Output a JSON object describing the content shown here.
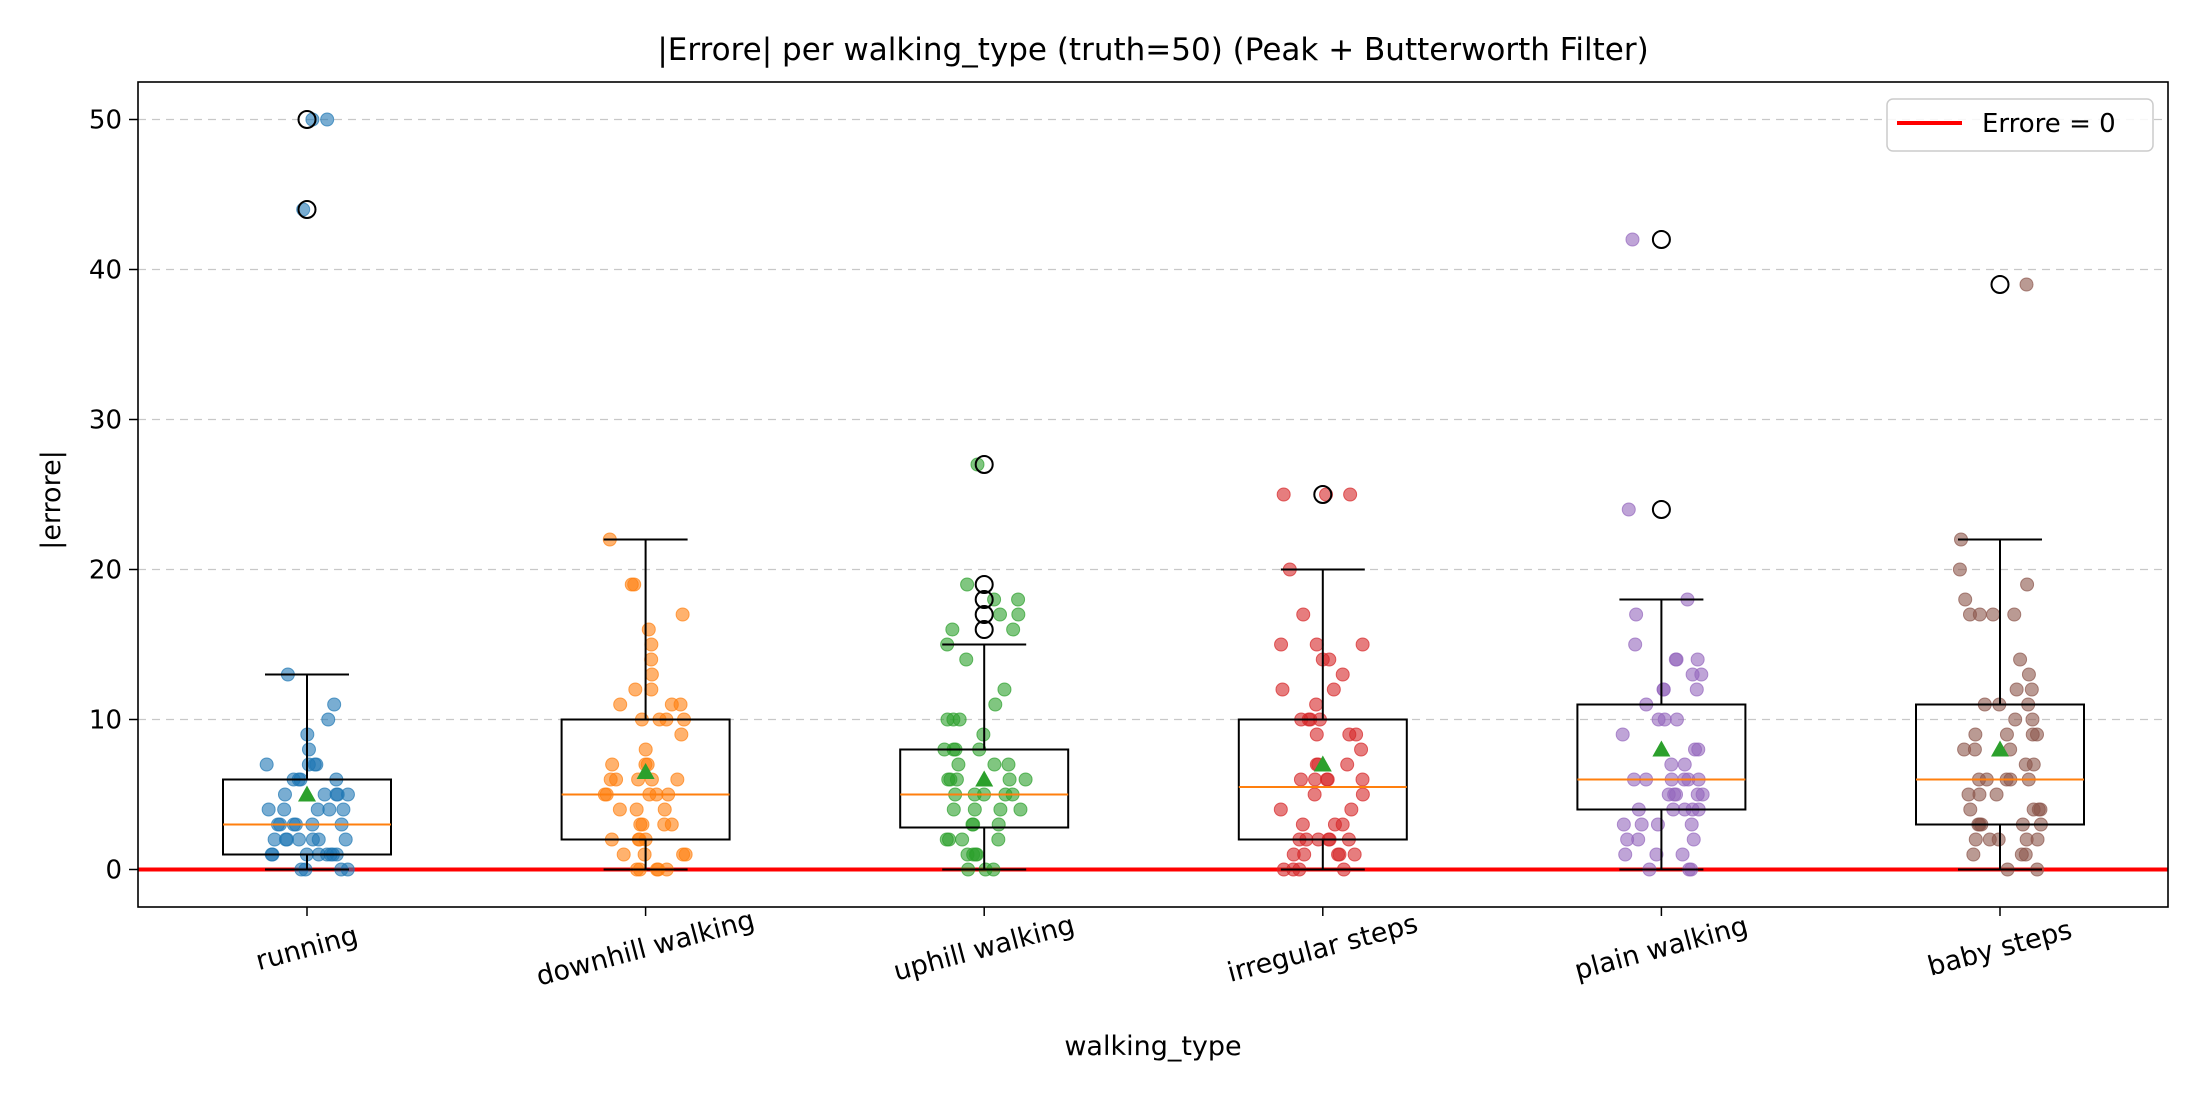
{
  "chart_data": {
    "type": "box",
    "title": "|Errore| per walking_type (truth=50) (Peak + Butterworth Filter)",
    "xlabel": "walking_type",
    "ylabel": "|errore|",
    "ylim": [
      -2.5,
      52.5
    ],
    "yticks": [
      0,
      10,
      20,
      30,
      40,
      50
    ],
    "grid": "y-dashed",
    "categories": [
      "running",
      "downhill walking",
      "uphill walking",
      "irregular steps",
      "plain walking",
      "baby steps"
    ],
    "legend": {
      "position": "top-right",
      "entries": [
        {
          "label": "Errore = 0",
          "color": "#ff0000"
        }
      ]
    },
    "reference_line": {
      "y": 0,
      "label": "Errore = 0",
      "color": "#ff0000"
    },
    "series_colors": [
      "#1f77b4",
      "#ff7f0e",
      "#2ca02c",
      "#d62728",
      "#9467bd",
      "#8c564b"
    ],
    "boxes": [
      {
        "category": "running",
        "q1": 1,
        "median": 3,
        "q3": 6,
        "whisker_low": 0,
        "whisker_high": 13,
        "mean": 5.0,
        "outliers": [
          44,
          50
        ]
      },
      {
        "category": "downhill walking",
        "q1": 2,
        "median": 5,
        "q3": 10,
        "whisker_low": 0,
        "whisker_high": 22,
        "mean": 6.5,
        "outliers": []
      },
      {
        "category": "uphill walking",
        "q1": 2.8,
        "median": 5,
        "q3": 8,
        "whisker_low": 0,
        "whisker_high": 15,
        "mean": 6.0,
        "outliers": [
          16,
          17,
          18,
          19,
          27
        ]
      },
      {
        "category": "irregular steps",
        "q1": 2,
        "median": 5.5,
        "q3": 10,
        "whisker_low": 0,
        "whisker_high": 20,
        "mean": 7.0,
        "outliers": [
          25
        ]
      },
      {
        "category": "plain walking",
        "q1": 4,
        "median": 6,
        "q3": 11,
        "whisker_low": 0,
        "whisker_high": 18,
        "mean": 8.0,
        "outliers": [
          24,
          42
        ]
      },
      {
        "category": "baby steps",
        "q1": 3,
        "median": 6,
        "q3": 11,
        "whisker_low": 0,
        "whisker_high": 22,
        "mean": 8.0,
        "outliers": [
          39
        ]
      }
    ],
    "points": [
      [
        50,
        50,
        44,
        13,
        11,
        10,
        9,
        8,
        7,
        7,
        7,
        7,
        6,
        6,
        6,
        6,
        5,
        5,
        5,
        5,
        5,
        4,
        4,
        4,
        4,
        4,
        3,
        3,
        3,
        3,
        3,
        3,
        2,
        2,
        2,
        2,
        2,
        2,
        2,
        1,
        1,
        1,
        1,
        1,
        1,
        1,
        1,
        0,
        0,
        0,
        0
      ],
      [
        22,
        19,
        19,
        17,
        16,
        15,
        14,
        13,
        12,
        12,
        11,
        11,
        11,
        10,
        10,
        10,
        10,
        9,
        8,
        7,
        7,
        7,
        6,
        6,
        6,
        6,
        6,
        5,
        5,
        5,
        5,
        5,
        4,
        4,
        4,
        3,
        3,
        3,
        3,
        2,
        2,
        2,
        2,
        1,
        1,
        1,
        1,
        0,
        0,
        0,
        0,
        0
      ],
      [
        27,
        19,
        18,
        18,
        17,
        17,
        16,
        16,
        15,
        14,
        12,
        11,
        10,
        10,
        10,
        9,
        8,
        8,
        8,
        8,
        7,
        7,
        7,
        6,
        6,
        6,
        6,
        6,
        5,
        5,
        5,
        5,
        5,
        4,
        4,
        4,
        4,
        3,
        3,
        3,
        2,
        2,
        2,
        2,
        1,
        1,
        1,
        1,
        0,
        0,
        0
      ],
      [
        25,
        25,
        25,
        20,
        17,
        15,
        15,
        15,
        14,
        14,
        13,
        12,
        12,
        11,
        10,
        10,
        10,
        10,
        9,
        9,
        9,
        8,
        7,
        7,
        7,
        6,
        6,
        6,
        6,
        6,
        5,
        5,
        4,
        4,
        3,
        3,
        3,
        2,
        2,
        2,
        2,
        2,
        2,
        1,
        1,
        1,
        1,
        1,
        0,
        0,
        0,
        0
      ],
      [
        42,
        24,
        18,
        17,
        15,
        14,
        14,
        14,
        13,
        13,
        12,
        12,
        12,
        11,
        10,
        10,
        10,
        9,
        8,
        8,
        7,
        7,
        6,
        6,
        6,
        6,
        6,
        6,
        5,
        5,
        5,
        5,
        5,
        4,
        4,
        4,
        4,
        4,
        3,
        3,
        3,
        3,
        2,
        2,
        2,
        1,
        1,
        1,
        0,
        0,
        0
      ],
      [
        39,
        22,
        20,
        19,
        18,
        17,
        17,
        17,
        17,
        14,
        13,
        12,
        12,
        11,
        11,
        11,
        10,
        10,
        9,
        9,
        9,
        9,
        8,
        8,
        8,
        7,
        7,
        6,
        6,
        6,
        6,
        6,
        5,
        5,
        5,
        4,
        4,
        4,
        4,
        3,
        3,
        3,
        3,
        3,
        2,
        2,
        2,
        2,
        2,
        1,
        1,
        1,
        0,
        0
      ]
    ]
  }
}
